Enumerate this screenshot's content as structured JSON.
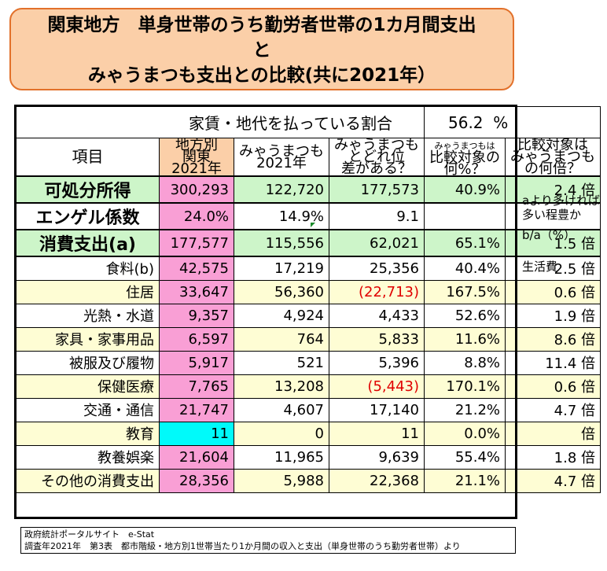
{
  "title": {
    "line1": "関東地方　単身世帯のうち勤労者世帯の1カ月間支出",
    "line2": "と",
    "line3": "みゃうまつも支出との比較(共に2021年）"
  },
  "rent_ratio": {
    "label": "家賃・地代を払っている割合",
    "value": "56.2",
    "unit": "%"
  },
  "headers": {
    "item": "項目",
    "col1": [
      "地方別",
      "関東",
      "2021年"
    ],
    "col2": [
      "みゃうまつも",
      "2021年"
    ],
    "col3": [
      "みゃうまつも",
      "とどれ位",
      "差がある？"
    ],
    "col4": [
      "みゃうまつもは",
      "比較対象の",
      "何%？"
    ],
    "col5": [
      "比較対象は",
      "みゃうまつも",
      "の何倍？"
    ]
  },
  "rows": [
    {
      "label": "可処分所得",
      "c1": "300,293",
      "c2": "122,720",
      "c3": "177,573",
      "c4": "40.9%",
      "c5": "2.4 倍"
    },
    {
      "label": "エンゲル係数",
      "c1": "24.0%",
      "c2": "14.9%",
      "c3": "9.1",
      "c4": "",
      "c5": ""
    },
    {
      "label": "消費支出(a)",
      "c1": "177,577",
      "c2": "115,556",
      "c3": "62,021",
      "c4": "65.1%",
      "c5": "1.5 倍"
    },
    {
      "label": "食料(b)",
      "c1": "42,575",
      "c2": "17,219",
      "c3": "25,356",
      "c4": "40.4%",
      "c5": "2.5 倍"
    },
    {
      "label": "住居",
      "c1": "33,647",
      "c2": "56,360",
      "c3": "(22,713)",
      "c4": "167.5%",
      "c5": "0.6 倍"
    },
    {
      "label": "光熱・水道",
      "c1": "9,357",
      "c2": "4,924",
      "c3": "4,433",
      "c4": "52.6%",
      "c5": "1.9 倍"
    },
    {
      "label": "家具・家事用品",
      "c1": "6,597",
      "c2": "764",
      "c3": "5,833",
      "c4": "11.6%",
      "c5": "8.6 倍"
    },
    {
      "label": "被服及び履物",
      "c1": "5,917",
      "c2": "521",
      "c3": "5,396",
      "c4": "8.8%",
      "c5": "11.4 倍"
    },
    {
      "label": "保健医療",
      "c1": "7,765",
      "c2": "13,208",
      "c3": "(5,443)",
      "c4": "170.1%",
      "c5": "0.6 倍"
    },
    {
      "label": "交通・通信",
      "c1": "21,747",
      "c2": "4,607",
      "c3": "17,140",
      "c4": "21.2%",
      "c5": "4.7 倍"
    },
    {
      "label": "教育",
      "c1": "11",
      "c2": "0",
      "c3": "11",
      "c4": "0.0%",
      "c5": "倍"
    },
    {
      "label": "教養娯楽",
      "c1": "21,604",
      "c2": "11,965",
      "c3": "9,639",
      "c4": "55.4%",
      "c5": "1.8 倍"
    },
    {
      "label": "その他の消費支出",
      "c1": "28,356",
      "c2": "5,988",
      "c3": "22,368",
      "c4": "21.1%",
      "c5": "4.7 倍"
    }
  ],
  "side_notes": {
    "note1a": "aより多ければ",
    "note1b": "多い程豊か",
    "note2": "b/a（%）",
    "note3": "生活費"
  },
  "footer": {
    "line1": "政府統計ポータルサイト　e-Stat",
    "line2": "調査年2021年　第3表　都市階級・地方別1世帯当たり1か月間の収入と支出（単身世帯のうち勤労者世帯）より"
  }
}
